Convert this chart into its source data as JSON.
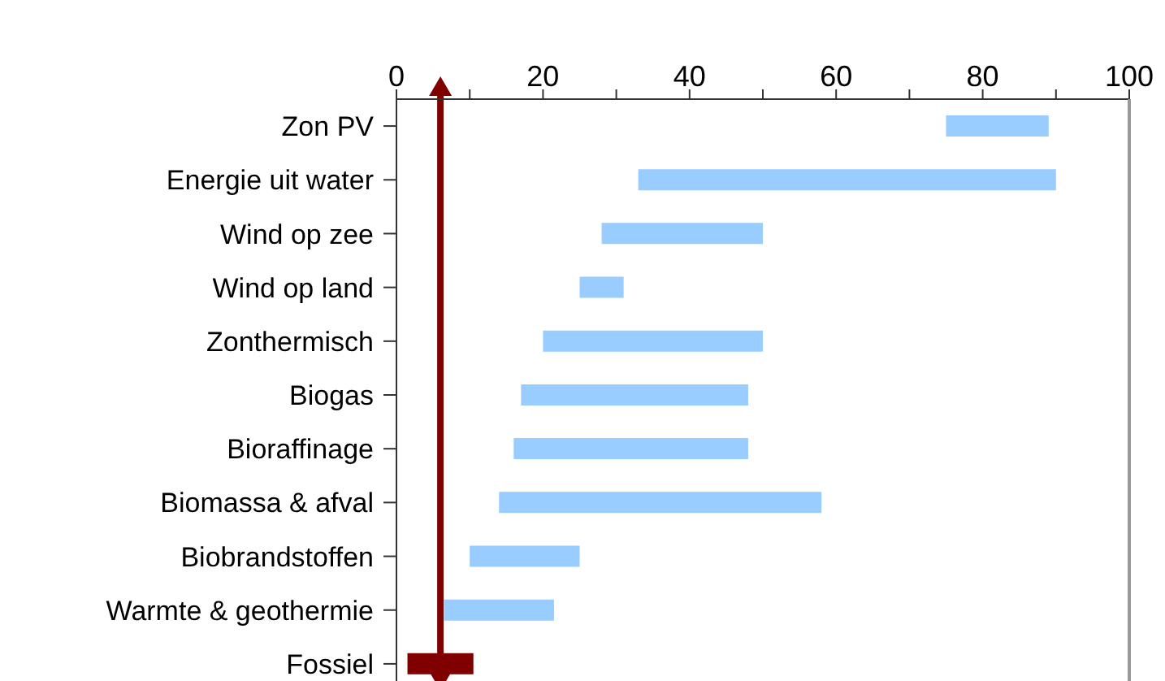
{
  "chart_data": {
    "type": "bar",
    "orientation": "horizontal",
    "categories": [
      "Zon PV",
      "Energie uit water",
      "Wind op zee",
      "Wind op land",
      "Zonthermisch",
      "Biogas",
      "Bioraffinage",
      "Biomassa & afval",
      "Biobrandstoffen",
      "Warmte & geothermie",
      "Fossiel"
    ],
    "base": [
      75,
      33,
      28,
      25,
      20,
      17,
      16,
      14,
      10,
      6.5,
      1.5
    ],
    "values": [
      14,
      57,
      22,
      6,
      30,
      31,
      32,
      44,
      15,
      15,
      9
    ],
    "colors": [
      "#99ccff",
      "#99ccff",
      "#99ccff",
      "#99ccff",
      "#99ccff",
      "#99ccff",
      "#99ccff",
      "#99ccff",
      "#99ccff",
      "#99ccff",
      "#800000"
    ],
    "xlim": [
      0,
      100
    ],
    "xticks": [
      0,
      {
        "value": 10,
        "label": null
      },
      20,
      {
        "value": 30,
        "label": null
      },
      40,
      {
        "value": 50,
        "label": null
      },
      60,
      {
        "value": 70,
        "label": null
      },
      80,
      {
        "value": 90,
        "label": null
      },
      100
    ],
    "ref_lines": [
      {
        "axis": "x",
        "value": 6,
        "color": "#800000"
      }
    ],
    "grid": false
  }
}
